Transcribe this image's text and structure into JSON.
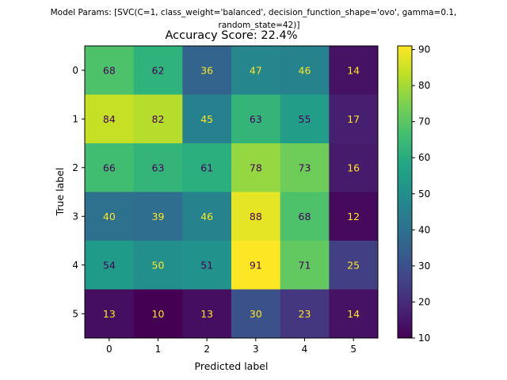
{
  "chart_data": {
    "type": "heatmap",
    "suptitle_line1": "Model Params: [SVC(C=1, class_weight='balanced', decision_function_shape='ovo', gamma=0.1,",
    "suptitle_line2": "random_state=42)]",
    "title": "Accuracy Score: 22.4%",
    "xlabel": "Predicted label",
    "ylabel": "True label",
    "x_categories": [
      "0",
      "1",
      "2",
      "3",
      "4",
      "5"
    ],
    "y_categories": [
      "0",
      "1",
      "2",
      "3",
      "4",
      "5"
    ],
    "matrix": [
      [
        68,
        62,
        36,
        47,
        46,
        14
      ],
      [
        84,
        82,
        45,
        63,
        55,
        17
      ],
      [
        66,
        63,
        61,
        78,
        73,
        16
      ],
      [
        40,
        39,
        46,
        88,
        68,
        12
      ],
      [
        54,
        50,
        51,
        91,
        71,
        25
      ],
      [
        13,
        10,
        13,
        30,
        23,
        14
      ]
    ],
    "colormap": "viridis",
    "vmin": 10,
    "vmax": 91,
    "colorbar_ticks": [
      "10",
      "20",
      "30",
      "40",
      "50",
      "60",
      "70",
      "80",
      "90"
    ],
    "text_color_dark": "#440154",
    "text_color_light": "#fde725"
  }
}
